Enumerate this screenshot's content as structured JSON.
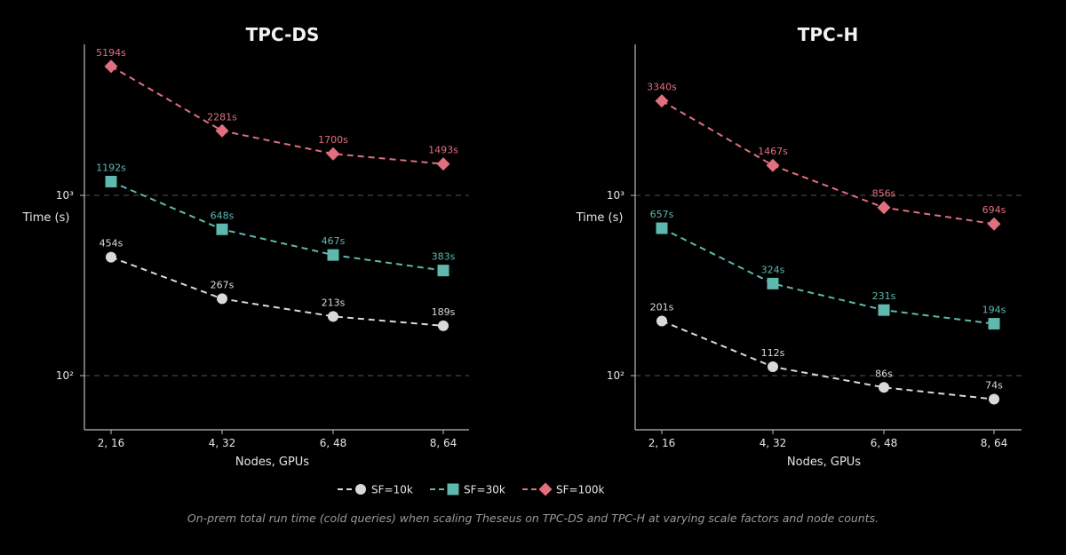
{
  "chart_data": [
    {
      "type": "line",
      "title": "TPC-DS",
      "xlabel": "Nodes, GPUs",
      "ylabel": "Time (s)",
      "yscale": "log",
      "categories": [
        "2, 16",
        "4, 32",
        "6, 48",
        "8, 64"
      ],
      "yticks": [
        {
          "value": 100,
          "label": "10²"
        },
        {
          "value": 1000,
          "label": "10³"
        }
      ],
      "series": [
        {
          "name": "SF=10k",
          "marker": "circle",
          "color": "#d9d9d9",
          "values": [
            454,
            267,
            213,
            189
          ],
          "labels": [
            "454s",
            "267s",
            "213s",
            "189s"
          ]
        },
        {
          "name": "SF=30k",
          "marker": "square",
          "color": "#5fb8ad",
          "values": [
            1192,
            648,
            467,
            383
          ],
          "labels": [
            "1192s",
            "648s",
            "467s",
            "383s"
          ]
        },
        {
          "name": "SF=100k",
          "marker": "diamond",
          "color": "#e0707e",
          "values": [
            5194,
            2281,
            1700,
            1493
          ],
          "labels": [
            "5194s",
            "2281s",
            "1700s",
            "1493s"
          ]
        }
      ]
    },
    {
      "type": "line",
      "title": "TPC-H",
      "xlabel": "Nodes, GPUs",
      "ylabel": "Time (s)",
      "yscale": "log",
      "categories": [
        "2, 16",
        "4, 32",
        "6, 48",
        "8, 64"
      ],
      "yticks": [
        {
          "value": 100,
          "label": "10²"
        },
        {
          "value": 1000,
          "label": "10³"
        }
      ],
      "series": [
        {
          "name": "SF=10k",
          "marker": "circle",
          "color": "#d9d9d9",
          "values": [
            201,
            112,
            86,
            74
          ],
          "labels": [
            "201s",
            "112s",
            "86s",
            "74s"
          ]
        },
        {
          "name": "SF=30k",
          "marker": "square",
          "color": "#5fb8ad",
          "values": [
            657,
            324,
            231,
            194
          ],
          "labels": [
            "657s",
            "324s",
            "231s",
            "194s"
          ]
        },
        {
          "name": "SF=100k",
          "marker": "diamond",
          "color": "#e0707e",
          "values": [
            3340,
            1467,
            856,
            694
          ],
          "labels": [
            "3340s",
            "1467s",
            "856s",
            "694s"
          ]
        }
      ]
    }
  ],
  "legend": {
    "placement": "bottom-center",
    "items": [
      {
        "label": "SF=10k",
        "marker": "circle",
        "color": "#d9d9d9"
      },
      {
        "label": "SF=30k",
        "marker": "square",
        "color": "#5fb8ad"
      },
      {
        "label": "SF=100k",
        "marker": "diamond",
        "color": "#e0707e"
      }
    ]
  },
  "caption": "On-prem total run time (cold queries) when scaling Theseus on TPC-DS and TPC-H at varying scale factors and node counts."
}
